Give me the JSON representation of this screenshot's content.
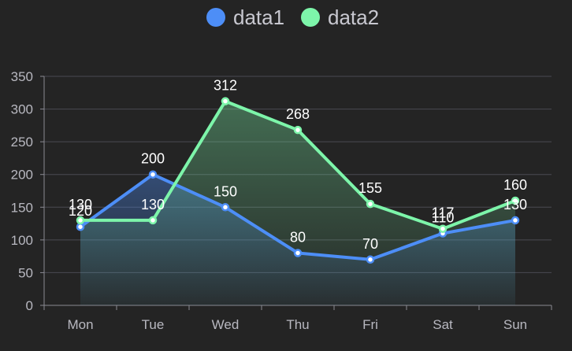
{
  "chart_data": {
    "type": "area",
    "categories": [
      "Mon",
      "Tue",
      "Wed",
      "Thu",
      "Fri",
      "Sat",
      "Sun"
    ],
    "series": [
      {
        "name": "data1",
        "color": "#4d8ef7",
        "values": [
          120,
          200,
          150,
          80,
          70,
          110,
          130
        ]
      },
      {
        "name": "data2",
        "color": "#7df5aa",
        "values": [
          130,
          130,
          312,
          268,
          155,
          117,
          160
        ]
      }
    ],
    "ylim": [
      0,
      350
    ],
    "yticks": [
      0,
      50,
      100,
      150,
      200,
      250,
      300,
      350
    ],
    "grid": true,
    "legend": "top-center",
    "data_labels": true
  }
}
